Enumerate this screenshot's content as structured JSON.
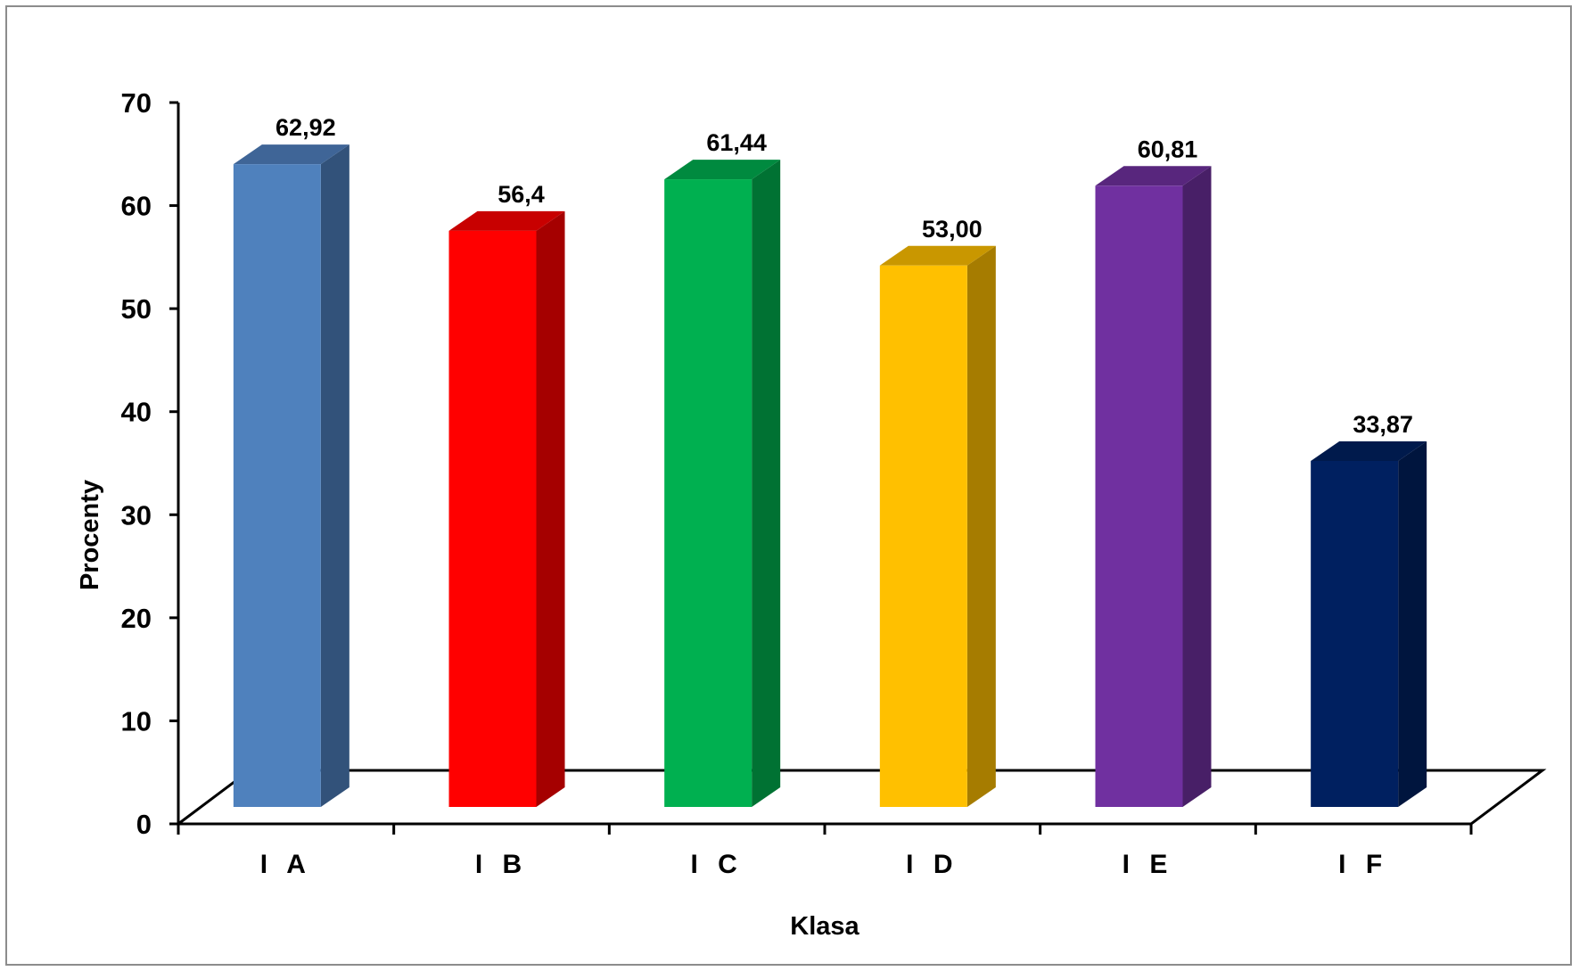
{
  "chart_data": {
    "type": "bar",
    "style": "3d-columns",
    "xlabel": "Klasa",
    "ylabel": "Procenty",
    "ylim": [
      0,
      70
    ],
    "yticks": [
      0,
      10,
      20,
      30,
      40,
      50,
      60,
      70
    ],
    "categories": [
      "I A",
      "I B",
      "I C",
      "I D",
      "I E",
      "I F"
    ],
    "values": [
      62.92,
      56.4,
      61.44,
      53.0,
      60.81,
      33.87
    ],
    "data_labels": [
      "62,92",
      "56,4",
      "61,44",
      "53,00",
      "60,81",
      "33,87"
    ],
    "colors": [
      {
        "front": "#4f81bd",
        "side": "#32527a",
        "top": "#3f6597"
      },
      {
        "front": "#ff0000",
        "side": "#a50000",
        "top": "#c80000"
      },
      {
        "front": "#00b050",
        "side": "#007233",
        "top": "#008a3f"
      },
      {
        "front": "#ffc000",
        "side": "#a67c00",
        "top": "#c99700"
      },
      {
        "front": "#7030a0",
        "side": "#481f67",
        "top": "#58267d"
      },
      {
        "front": "#002060",
        "side": "#00153e",
        "top": "#001a4c"
      }
    ],
    "grid": false,
    "legend": "none"
  }
}
